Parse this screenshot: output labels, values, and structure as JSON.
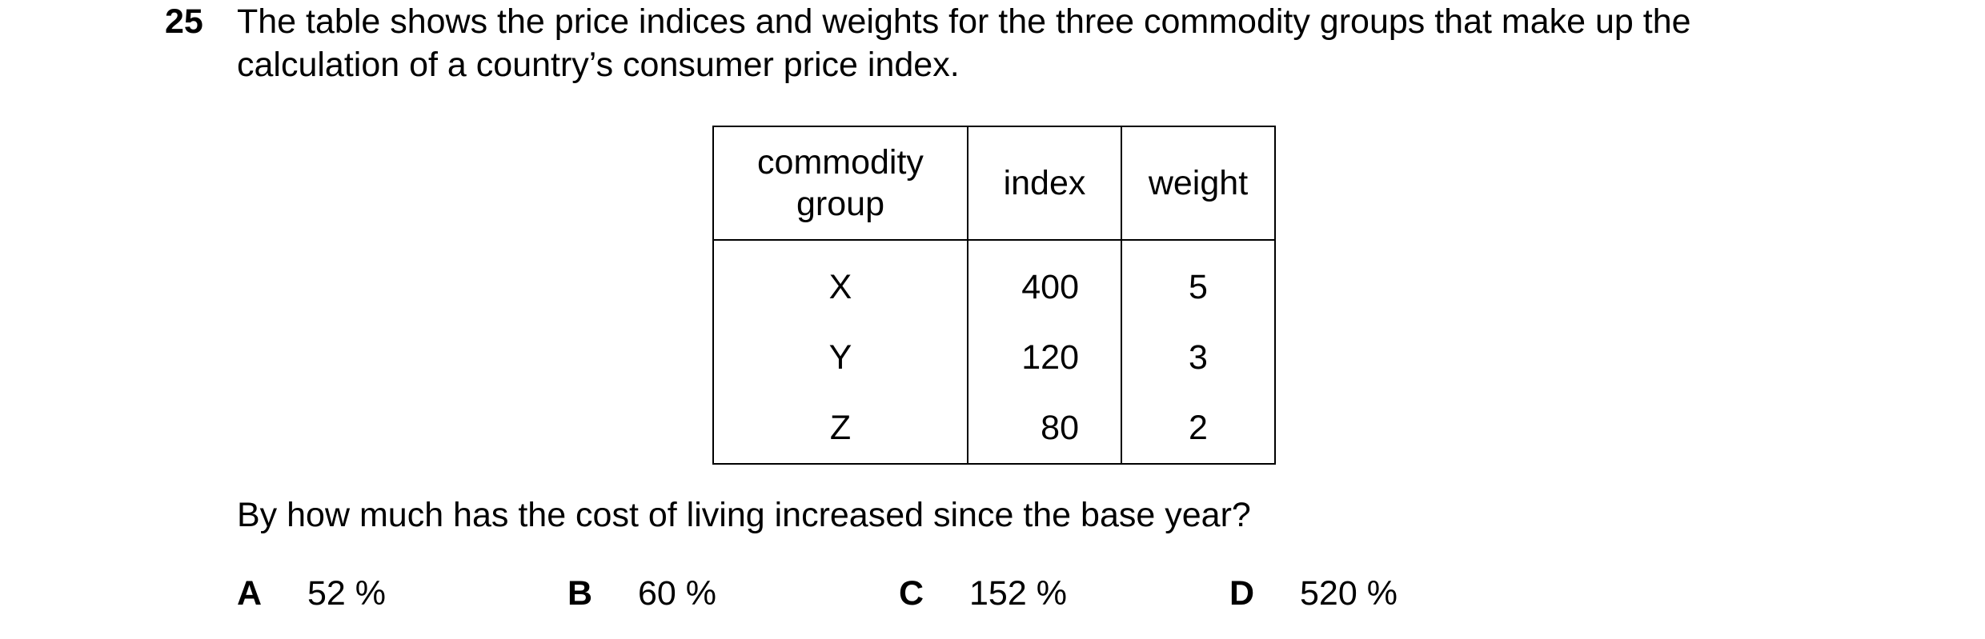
{
  "question": {
    "number": "25",
    "stem_line1": "The table shows the price indices and weights for the three commodity groups that make up the",
    "stem_line2": "calculation of a country’s consumer price index.",
    "prompt": "By how much has the cost of living increased since the base year?"
  },
  "table": {
    "headers": {
      "group_line1": "commodity",
      "group_line2": "group",
      "index": "index",
      "weight": "weight"
    },
    "rows": [
      {
        "group": "X",
        "index": "400",
        "weight": "5"
      },
      {
        "group": "Y",
        "index": "120",
        "weight": "3"
      },
      {
        "group": "Z",
        "index": "80",
        "weight": "2"
      }
    ]
  },
  "options": [
    {
      "letter": "A",
      "text": "52 %"
    },
    {
      "letter": "B",
      "text": "60 %"
    },
    {
      "letter": "C",
      "text": "152 %"
    },
    {
      "letter": "D",
      "text": "520 %"
    }
  ]
}
